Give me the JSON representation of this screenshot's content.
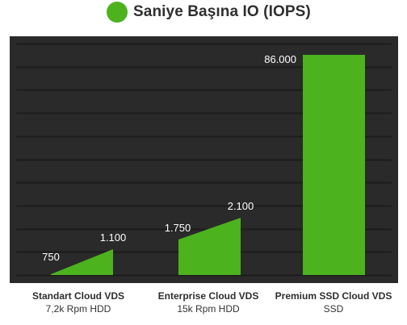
{
  "header": {
    "title": "Saniye Başına IO (IOPS)"
  },
  "colors": {
    "accent": "#4cb21d",
    "plot_background": "#2a2a2a",
    "grid_line": "#1c1c1c",
    "value_label": "#ffffff"
  },
  "categories": [
    {
      "name": "Standart Cloud VDS",
      "sub": "7,2k Rpm HDD"
    },
    {
      "name": "Enterprise Cloud VDS",
      "sub": "15k Rpm HDD"
    },
    {
      "name": "Premium SSD Cloud VDS",
      "sub": "SSD"
    }
  ],
  "chart_data": {
    "type": "bar",
    "title": "Saniye Başına IO (IOPS)",
    "legend": {
      "position": "top",
      "entries": [
        "Saniye Başına IO (IOPS)"
      ]
    },
    "categories": [
      "Standart Cloud VDS",
      "Enterprise Cloud VDS",
      "Premium SSD Cloud VDS"
    ],
    "subcategories": [
      "7,2k Rpm HDD",
      "15k Rpm HDD",
      "SSD"
    ],
    "series": [
      {
        "name": "Saniye Başına IO (IOPS)",
        "low": [
          750,
          1750,
          86000
        ],
        "high": [
          1100,
          2100,
          86000
        ],
        "low_labels": [
          "750",
          "1.750",
          "86.000"
        ],
        "high_labels": [
          "1.100",
          "2.100",
          ""
        ]
      }
    ],
    "scale_note": "bars for HDD tiers are drawn as a rising wedge from low to high; SSD bar is a full column",
    "grid": true,
    "xlabel": "",
    "ylabel": ""
  }
}
